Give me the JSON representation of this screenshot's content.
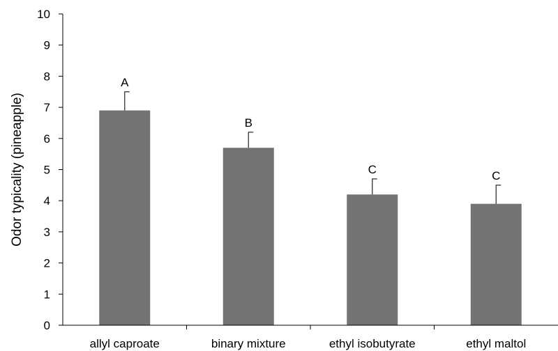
{
  "chart_data": {
    "type": "bar",
    "title": "",
    "xlabel": "",
    "ylabel": "Odor typicality (pineapple)",
    "ylim": [
      0,
      10
    ],
    "yticks": [
      0,
      1,
      2,
      3,
      4,
      5,
      6,
      7,
      8,
      9,
      10
    ],
    "categories": [
      "allyl caproate",
      "binary mixture",
      "ethyl isobutyrate",
      "ethyl maltol"
    ],
    "values": [
      6.9,
      5.7,
      4.2,
      3.9
    ],
    "error_upper": [
      0.6,
      0.5,
      0.5,
      0.6
    ],
    "significance_labels": [
      "A",
      "B",
      "C",
      "C"
    ],
    "bar_color": "#737373",
    "grid": false,
    "legend": "none"
  }
}
